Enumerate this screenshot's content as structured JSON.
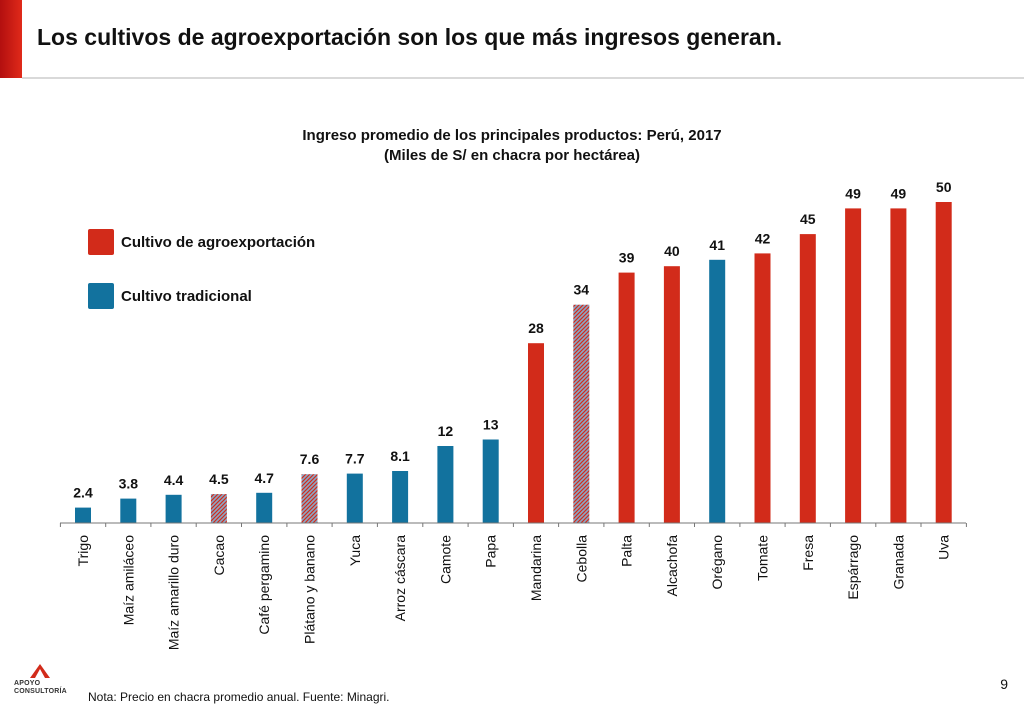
{
  "slide": {
    "title": "Los cultivos de agroexportación son los que más ingresos generan.",
    "footnote": "Nota: Precio en chacra promedio anual. Fuente: Minagri.",
    "page_number": "9",
    "logo": {
      "line1": "APOYO",
      "line2": "CONSULTORÍA"
    }
  },
  "colors": {
    "agroexport": "#d22b1a",
    "traditional": "#12729e",
    "hatch_light": "#8aa8c8"
  },
  "chart_data": {
    "type": "bar",
    "title": "Ingreso promedio de los principales productos: Perú, 2017",
    "subtitle": "(Miles de S/ en chacra por hectárea)",
    "ylim": [
      0,
      50
    ],
    "legend": [
      {
        "key": "agroexport",
        "label": "Cultivo de agroexportación"
      },
      {
        "key": "traditional",
        "label": "Cultivo tradicional"
      }
    ],
    "bars": [
      {
        "category": "Trigo",
        "value": 2.4,
        "label": "2.4",
        "type": "traditional"
      },
      {
        "category": "Maíz amiláceo",
        "value": 3.8,
        "label": "3.8",
        "type": "traditional"
      },
      {
        "category": "Maíz amarillo duro",
        "value": 4.4,
        "label": "4.4",
        "type": "traditional"
      },
      {
        "category": "Cacao",
        "value": 4.5,
        "label": "4.5",
        "type": "mixed"
      },
      {
        "category": "Café pergamino",
        "value": 4.7,
        "label": "4.7",
        "type": "traditional"
      },
      {
        "category": "Plátano y banano",
        "value": 7.6,
        "label": "7.6",
        "type": "mixed"
      },
      {
        "category": "Yuca",
        "value": 7.7,
        "label": "7.7",
        "type": "traditional"
      },
      {
        "category": "Arroz cáscara",
        "value": 8.1,
        "label": "8.1",
        "type": "traditional"
      },
      {
        "category": "Camote",
        "value": 12,
        "label": "12",
        "type": "traditional"
      },
      {
        "category": "Papa",
        "value": 13,
        "label": "13",
        "type": "traditional"
      },
      {
        "category": "Mandarina",
        "value": 28,
        "label": "28",
        "type": "agroexport"
      },
      {
        "category": "Cebolla",
        "value": 34,
        "label": "34",
        "type": "mixed"
      },
      {
        "category": "Palta",
        "value": 39,
        "label": "39",
        "type": "agroexport"
      },
      {
        "category": "Alcachofa",
        "value": 40,
        "label": "40",
        "type": "agroexport"
      },
      {
        "category": "Orégano",
        "value": 41,
        "label": "41",
        "type": "traditional"
      },
      {
        "category": "Tomate",
        "value": 42,
        "label": "42",
        "type": "agroexport"
      },
      {
        "category": "Fresa",
        "value": 45,
        "label": "45",
        "type": "agroexport"
      },
      {
        "category": "Espárrago",
        "value": 49,
        "label": "49",
        "type": "agroexport"
      },
      {
        "category": "Granada",
        "value": 49,
        "label": "49",
        "type": "agroexport"
      },
      {
        "category": "Uva",
        "value": 50,
        "label": "50",
        "type": "agroexport"
      }
    ]
  }
}
